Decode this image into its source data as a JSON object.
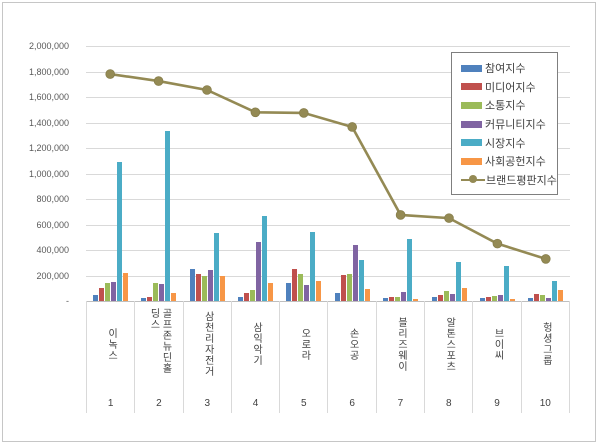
{
  "chart_data": {
    "type": "bar",
    "subtype": "grouped-bars-with-line-overlay",
    "title": "",
    "legend_position": "top-right-inside",
    "grid": true,
    "categories": [
      "이녹스",
      "골프존뉴딘홀딩스",
      "삼천리자전거",
      "삼익악기",
      "오로라",
      "손오공",
      "블리즈웨이",
      "알톤스포츠",
      "브이씨",
      "헝셩그룹"
    ],
    "category_ranks": [
      "1",
      "2",
      "3",
      "4",
      "5",
      "6",
      "7",
      "8",
      "9",
      "10"
    ],
    "y_axis": {
      "min": 0,
      "max": 2000000,
      "step": 200000,
      "tick_labels_top_down": [
        "2,000,000",
        "1,800,000",
        "1,600,000",
        "1,400,000",
        "1,200,000",
        "1,000,000",
        "800,000",
        "600,000",
        "400,000",
        "200,000",
        "-"
      ]
    },
    "series": [
      {
        "name": "참여지수",
        "type": "bar",
        "color": "#4F81BD",
        "values": [
          45000,
          20000,
          255000,
          30000,
          140000,
          60000,
          25000,
          30000,
          25000,
          20000
        ]
      },
      {
        "name": "미디어지수",
        "type": "bar",
        "color": "#C0504D",
        "values": [
          100000,
          30000,
          210000,
          60000,
          255000,
          205000,
          30000,
          50000,
          30000,
          55000
        ]
      },
      {
        "name": "소통지수",
        "type": "bar",
        "color": "#9BBB59",
        "values": [
          140000,
          140000,
          200000,
          90000,
          215000,
          210000,
          30000,
          80000,
          40000,
          45000
        ]
      },
      {
        "name": "커뮤니티지수",
        "type": "bar",
        "color": "#8064A2",
        "values": [
          150000,
          135000,
          240000,
          465000,
          125000,
          440000,
          70000,
          55000,
          50000,
          25000
        ]
      },
      {
        "name": "시장지수",
        "type": "bar",
        "color": "#4BACC6",
        "values": [
          1090000,
          1330000,
          530000,
          665000,
          540000,
          320000,
          490000,
          305000,
          275000,
          155000
        ]
      },
      {
        "name": "사회공헌지수",
        "type": "bar",
        "color": "#F79646",
        "values": [
          220000,
          65000,
          200000,
          140000,
          155000,
          95000,
          15000,
          100000,
          15000,
          90000
        ]
      },
      {
        "name": "브랜드평판지수",
        "type": "line",
        "color": "#948A54",
        "values": [
          1780000,
          1725000,
          1655000,
          1480000,
          1475000,
          1365000,
          675000,
          650000,
          450000,
          330000
        ]
      }
    ]
  },
  "style_colors": {
    "gridline": "#d9d9d9",
    "axis_line": "#bfbfbf",
    "frame_border": "#c6c6c6",
    "legend_border": "#7f7f7f",
    "text": "#404040"
  }
}
